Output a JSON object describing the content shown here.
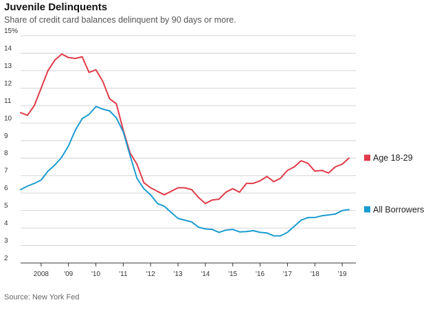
{
  "header": {
    "title": "Juvenile Delinquents",
    "subtitle": "Share of credit card balances delinquent by 90 days or more."
  },
  "footer": {
    "source": "Source: New York Fed"
  },
  "colors": {
    "age": "#e03a48",
    "all": "#1a9bd0",
    "grid": "#d4d4d4",
    "axis": "#333333"
  },
  "chart_data": {
    "type": "line",
    "title": "Juvenile Delinquents",
    "subtitle": "Share of credit card balances delinquent by 90 days or more.",
    "xlabel": "",
    "ylabel": "",
    "ylim": [
      2,
      15
    ],
    "xlim": [
      2007.25,
      2019.5
    ],
    "yticks": [
      15,
      14,
      13,
      12,
      11,
      10,
      9,
      8,
      7,
      6,
      5,
      4,
      3,
      2
    ],
    "ytick_labels": [
      "15%",
      "14",
      "13",
      "12",
      "11",
      "10",
      "9",
      "8",
      "7",
      "6",
      "5",
      "4",
      "3",
      "2"
    ],
    "xticks": [
      2008,
      2009,
      2010,
      2011,
      2012,
      2013,
      2014,
      2015,
      2016,
      2017,
      2018,
      2019
    ],
    "xtick_labels": [
      "2008",
      "'09",
      "'10",
      "'11",
      "'12",
      "'13",
      "'14",
      "'15",
      "'16",
      "'17",
      "'18",
      "'19"
    ],
    "grid": true,
    "series": [
      {
        "name": "Age 18-29",
        "color": "#e03a48",
        "x": [
          2007.25,
          2007.5,
          2007.75,
          2008,
          2008.25,
          2008.5,
          2008.75,
          2009,
          2009.25,
          2009.5,
          2009.75,
          2010,
          2010.25,
          2010.5,
          2010.75,
          2011,
          2011.25,
          2011.5,
          2011.75,
          2012,
          2012.25,
          2012.5,
          2012.75,
          2013,
          2013.25,
          2013.5,
          2013.75,
          2014,
          2014.25,
          2014.5,
          2014.75,
          2015,
          2015.25,
          2015.5,
          2015.75,
          2016,
          2016.25,
          2016.5,
          2016.75,
          2017,
          2017.25,
          2017.5,
          2017.75,
          2018,
          2018.25,
          2018.5,
          2018.75,
          2019,
          2019.25
        ],
        "values": [
          10.6,
          10.45,
          11.0,
          12.0,
          13.0,
          13.6,
          13.95,
          13.75,
          13.7,
          13.8,
          12.9,
          13.05,
          12.4,
          11.4,
          11.1,
          9.6,
          8.3,
          7.65,
          6.6,
          6.3,
          6.1,
          5.9,
          6.1,
          6.3,
          6.3,
          6.2,
          5.75,
          5.4,
          5.6,
          5.65,
          6.05,
          6.25,
          6.05,
          6.55,
          6.55,
          6.7,
          6.95,
          6.65,
          6.85,
          7.3,
          7.5,
          7.85,
          7.7,
          7.25,
          7.3,
          7.15,
          7.5,
          7.65,
          8.0
        ]
      },
      {
        "name": "All Borrowers",
        "color": "#1a9bd0",
        "x": [
          2007.25,
          2007.5,
          2007.75,
          2008,
          2008.25,
          2008.5,
          2008.75,
          2009,
          2009.25,
          2009.5,
          2009.75,
          2010,
          2010.25,
          2010.5,
          2010.75,
          2011,
          2011.25,
          2011.5,
          2011.75,
          2012,
          2012.25,
          2012.5,
          2012.75,
          2013,
          2013.25,
          2013.5,
          2013.75,
          2014,
          2014.25,
          2014.5,
          2014.75,
          2015,
          2015.25,
          2015.5,
          2015.75,
          2016,
          2016.25,
          2016.5,
          2016.75,
          2017,
          2017.25,
          2017.5,
          2017.75,
          2018,
          2018.25,
          2018.5,
          2018.75,
          2019,
          2019.25
        ],
        "values": [
          6.2,
          6.4,
          6.55,
          6.75,
          7.25,
          7.6,
          8.05,
          8.7,
          9.6,
          10.25,
          10.5,
          10.95,
          10.8,
          10.7,
          10.3,
          9.5,
          8.15,
          6.85,
          6.25,
          5.9,
          5.4,
          5.25,
          4.9,
          4.55,
          4.45,
          4.35,
          4.05,
          3.95,
          3.92,
          3.75,
          3.88,
          3.92,
          3.78,
          3.8,
          3.85,
          3.75,
          3.72,
          3.55,
          3.55,
          3.75,
          4.1,
          4.45,
          4.6,
          4.6,
          4.7,
          4.75,
          4.8,
          5.0,
          5.05
        ]
      }
    ],
    "legend": [
      {
        "label": "Age 18-29",
        "color": "#e03a48",
        "placement": "right"
      },
      {
        "label": "All Borrowers",
        "color": "#1a9bd0",
        "placement": "right"
      }
    ]
  }
}
